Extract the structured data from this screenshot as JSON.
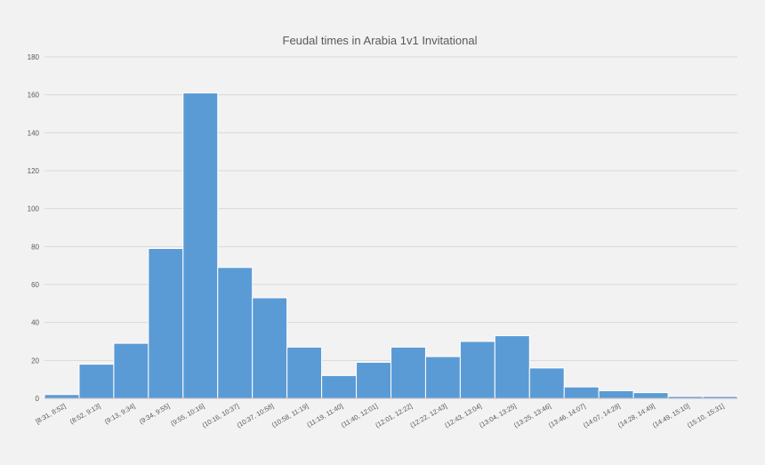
{
  "chart_data": {
    "type": "bar",
    "title": "Feudal times in Arabia 1v1 Invitational",
    "xlabel": "",
    "ylabel": "",
    "ylim": [
      0,
      180
    ],
    "yticks": [
      0,
      20,
      40,
      60,
      80,
      100,
      120,
      140,
      160,
      180
    ],
    "grid": true,
    "colors": {
      "bar": "#5b9bd5",
      "background": "#f2f2f2",
      "grid": "#d9d9d9"
    },
    "categories": [
      "[8:31, 8:52]",
      "(8:52, 9:13]",
      "(9:13, 9:34]",
      "(9:34, 9:55]",
      "(9:55, 10:16]",
      "(10:16, 10:37]",
      "(10:37, 10:58]",
      "(10:58, 11:19]",
      "(11:19, 11:40]",
      "(11:40, 12:01]",
      "(12:01, 12:22]",
      "(12:22, 12:43]",
      "(12:43, 13:04]",
      "(13:04, 13:25]",
      "(13:25, 13:46]",
      "(13:46, 14:07]",
      "(14:07, 14:28]",
      "(14:28, 14:49]",
      "(14:49, 15:10]",
      "(15:10, 15:31]"
    ],
    "values": [
      2,
      18,
      29,
      79,
      161,
      69,
      53,
      27,
      12,
      19,
      27,
      22,
      30,
      33,
      16,
      6,
      4,
      3,
      1,
      1
    ]
  }
}
